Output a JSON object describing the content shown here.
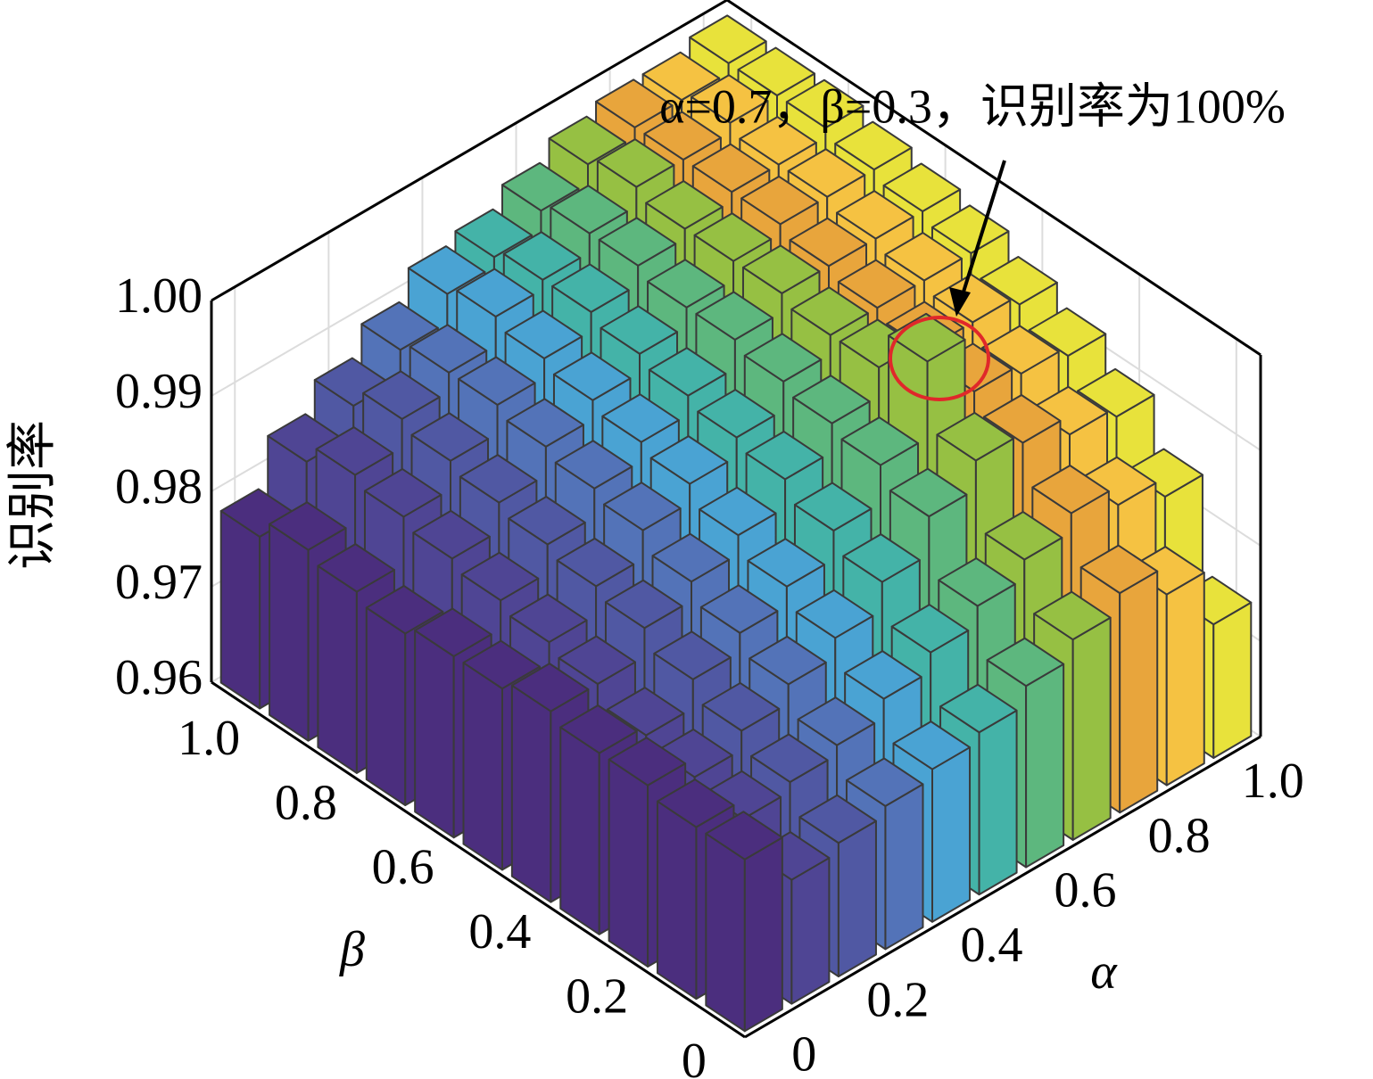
{
  "chart_data": {
    "type": "bar3d",
    "annotation": "α=0.7，β=0.3，识别率为100%",
    "xlabel": "α",
    "ylabel": "β",
    "zlabel": "识别率",
    "x": [
      0,
      0.1,
      0.2,
      0.3,
      0.4,
      0.5,
      0.6,
      0.7,
      0.8,
      0.9,
      1
    ],
    "y": [
      0,
      0.1,
      0.2,
      0.3,
      0.4,
      0.5,
      0.6,
      0.7,
      0.8,
      0.9,
      1
    ],
    "xticks": [
      0,
      0.2,
      0.4,
      0.6,
      0.8,
      {
        "value": 1,
        "label": "1.0"
      }
    ],
    "yticks": [
      0,
      0.2,
      0.4,
      0.6,
      0.8,
      {
        "value": 1,
        "label": "1.0"
      }
    ],
    "zlim": [
      0.96,
      1
    ],
    "zticks": [
      0.96,
      0.97,
      0.98,
      0.99,
      {
        "value": 1,
        "label": "1.00"
      }
    ],
    "grid": true,
    "series": [
      {
        "color": "#4b2e7e",
        "values": [
          0.978,
          0.978,
          0.979,
          0.979,
          0.98,
          0.979,
          0.979,
          0.978,
          0.979,
          0.98,
          0.978
        ]
      },
      {
        "color": "#4f4594",
        "values": [
          0.973,
          0.976,
          0.977,
          0.978,
          0.98,
          0.981,
          0.982,
          0.983,
          0.984,
          0.985,
          0.983
        ]
      },
      {
        "color": "#5058a3",
        "values": [
          0.974,
          0.977,
          0.979,
          0.981,
          0.983,
          0.984,
          0.985,
          0.986,
          0.987,
          0.988,
          0.986
        ]
      },
      {
        "color": "#5373b8",
        "values": [
          0.975,
          0.978,
          0.981,
          0.983,
          0.985,
          0.987,
          0.988,
          0.989,
          0.99,
          0.99,
          0.989
        ]
      },
      {
        "color": "#4aa3d3",
        "values": [
          0.976,
          0.98,
          0.983,
          0.985,
          0.987,
          0.989,
          0.99,
          0.991,
          0.992,
          0.993,
          0.992
        ]
      },
      {
        "color": "#44b3a8",
        "values": [
          0.977,
          0.982,
          0.986,
          0.988,
          0.99,
          0.991,
          0.992,
          0.993,
          0.994,
          0.994,
          0.993
        ]
      },
      {
        "color": "#5db77e",
        "values": [
          0.979,
          0.984,
          0.99,
          0.992,
          0.993,
          0.994,
          0.995,
          0.995,
          0.996,
          0.996,
          0.995
        ]
      },
      {
        "color": "#96c043",
        "values": [
          0.981,
          0.986,
          0.993,
          1.0,
          0.996,
          0.996,
          0.997,
          0.997,
          0.997,
          0.998,
          0.997
        ]
      },
      {
        "color": "#e8a53c",
        "values": [
          0.983,
          0.988,
          0.992,
          0.994,
          0.995,
          0.996,
          0.997,
          0.998,
          0.998,
          0.998,
          0.998
        ]
      },
      {
        "color": "#f5c242",
        "values": [
          0.98,
          0.986,
          0.99,
          0.993,
          0.995,
          0.996,
          0.997,
          0.998,
          0.998,
          0.999,
          0.998
        ]
      },
      {
        "color": "#e8e23b",
        "values": [
          0.974,
          0.984,
          0.989,
          0.992,
          0.994,
          0.996,
          0.997,
          0.998,
          0.999,
          0.999,
          0.999
        ]
      }
    ]
  }
}
